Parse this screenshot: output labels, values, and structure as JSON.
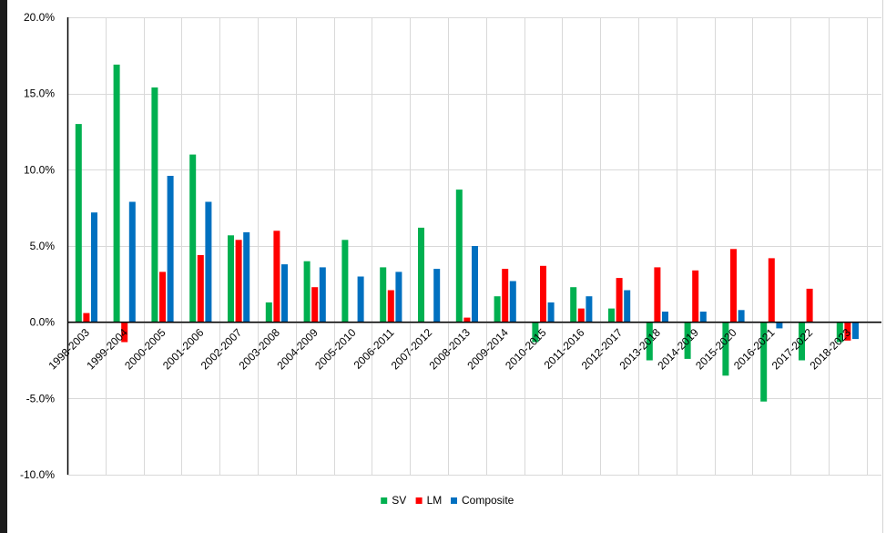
{
  "chart_data": {
    "type": "bar",
    "categories": [
      "1998-2003",
      "1999-2004",
      "2000-2005",
      "2001-2006",
      "2002-2007",
      "2003-2008",
      "2004-2009",
      "2005-2010",
      "2006-2011",
      "2007-2012",
      "2008-2013",
      "2009-2014",
      "2010-2015",
      "2011-2016",
      "2012-2017",
      "2013-2018",
      "2014-2019",
      "2015-2020",
      "2016-2021",
      "2017-2022",
      "2018-2023"
    ],
    "series": [
      {
        "name": "SV",
        "color": "#00b050",
        "values": [
          13.0,
          16.9,
          15.4,
          11.0,
          5.7,
          1.3,
          4.0,
          5.4,
          3.6,
          6.2,
          8.7,
          1.7,
          -1.3,
          2.3,
          0.9,
          -2.5,
          -2.4,
          -3.5,
          -5.2,
          -2.5,
          -1.3
        ]
      },
      {
        "name": "LM",
        "color": "#ff0000",
        "values": [
          0.6,
          -1.3,
          3.3,
          4.4,
          5.4,
          6.0,
          2.3,
          0.0,
          2.1,
          0.0,
          0.3,
          3.5,
          3.7,
          0.9,
          2.9,
          3.6,
          3.4,
          4.8,
          4.2,
          2.2,
          -1.2
        ]
      },
      {
        "name": "Composite",
        "color": "#0070c0",
        "values": [
          7.2,
          7.9,
          9.6,
          7.9,
          5.9,
          3.8,
          3.6,
          3.0,
          3.3,
          3.5,
          5.0,
          2.7,
          1.3,
          1.7,
          2.1,
          0.7,
          0.7,
          0.8,
          -0.4,
          0.0,
          -1.1
        ]
      }
    ],
    "y_ticks": [
      "20.0%",
      "15.0%",
      "10.0%",
      "5.0%",
      "0.0%",
      "-5.0%",
      "-10.0%"
    ],
    "ylim": [
      -10,
      20
    ],
    "grid": true,
    "legend_position": "bottom",
    "title": "",
    "xlabel": "",
    "ylabel": ""
  }
}
